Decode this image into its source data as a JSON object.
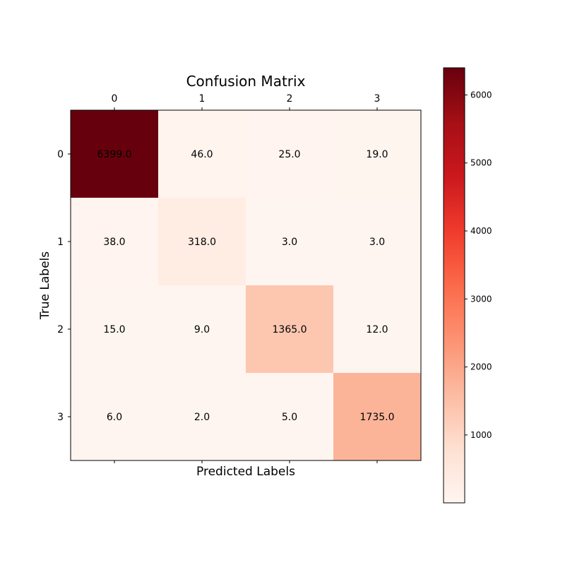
{
  "chart_data": {
    "type": "heatmap",
    "title": "Confusion Matrix",
    "xlabel": "Predicted Labels",
    "ylabel": "True Labels",
    "x_categories": [
      "0",
      "1",
      "2",
      "3"
    ],
    "y_categories": [
      "0",
      "1",
      "2",
      "3"
    ],
    "values": [
      [
        6399.0,
        46.0,
        25.0,
        19.0
      ],
      [
        38.0,
        318.0,
        3.0,
        3.0
      ],
      [
        15.0,
        9.0,
        1365.0,
        12.0
      ],
      [
        6.0,
        2.0,
        5.0,
        1735.0
      ]
    ],
    "value_labels": [
      [
        "6399.0",
        "46.0",
        "25.0",
        "19.0"
      ],
      [
        "38.0",
        "318.0",
        "3.0",
        "3.0"
      ],
      [
        "15.0",
        "9.0",
        "1365.0",
        "12.0"
      ],
      [
        "6.0",
        "2.0",
        "5.0",
        "1735.0"
      ]
    ],
    "colormap": "Reds",
    "color_stops": [
      "#fff5f0",
      "#fee0d2",
      "#fcbba1",
      "#fc9272",
      "#fb6a4a",
      "#ef3b2c",
      "#cb181d",
      "#a50f15",
      "#67000d"
    ],
    "value_range": [
      2,
      6399
    ],
    "colorbar": {
      "ticks": [
        1000,
        2000,
        3000,
        4000,
        5000,
        6000
      ],
      "tick_labels": [
        "1000",
        "2000",
        "3000",
        "4000",
        "5000",
        "6000"
      ]
    },
    "x_ticks_position": "top",
    "grid": false
  }
}
